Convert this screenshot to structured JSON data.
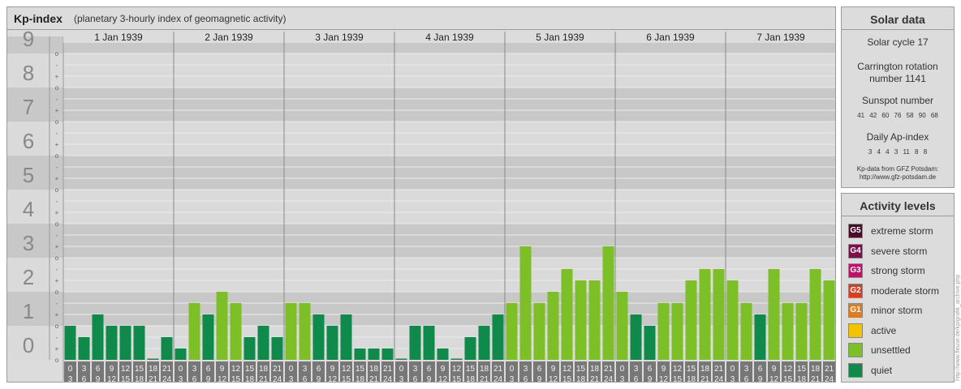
{
  "header": {
    "title": "Kp-index",
    "subtitle": "(planetary 3-hourly index of geomagnetic activity)"
  },
  "chart_data": {
    "type": "bar",
    "title": "Kp-index",
    "subtitle": "(planetary 3-hourly index of geomagnetic activity)",
    "days": [
      "1 Jan 1939",
      "2 Jan 1939",
      "3 Jan 1939",
      "4 Jan 1939",
      "5 Jan 1939",
      "6 Jan 1939",
      "7 Jan 1939"
    ],
    "interval_labels": [
      [
        "0",
        "3"
      ],
      [
        "3",
        "6"
      ],
      [
        "6",
        "9"
      ],
      [
        "9",
        "12"
      ],
      [
        "12",
        "15"
      ],
      [
        "15",
        "18"
      ],
      [
        "18",
        "21"
      ],
      [
        "21",
        "24"
      ]
    ],
    "y_major_labels": [
      "0",
      "1",
      "2",
      "3",
      "4",
      "5",
      "6",
      "7",
      "8",
      "9"
    ],
    "y_minor_labels": [
      "o",
      "+",
      "-",
      "o",
      "+",
      "-",
      "o",
      "+",
      "-",
      "o",
      "+",
      "-",
      "o",
      "+",
      "-",
      "o",
      "+",
      "-",
      "o",
      "+",
      "-",
      "o",
      "+",
      "-",
      "o",
      "+",
      "-",
      "o"
    ],
    "ylim": [
      0,
      9.333
    ],
    "values": [
      1.0,
      0.667,
      1.333,
      1.0,
      1.0,
      1.0,
      0.0,
      0.667,
      0.333,
      1.667,
      1.333,
      2.0,
      1.667,
      0.667,
      1.0,
      0.667,
      1.667,
      1.667,
      1.333,
      1.0,
      1.333,
      0.333,
      0.333,
      0.333,
      0.0,
      1.0,
      1.0,
      0.333,
      0.0,
      0.667,
      1.0,
      1.333,
      1.667,
      3.333,
      1.667,
      2.0,
      2.667,
      2.333,
      2.333,
      3.333,
      2.0,
      1.333,
      1.0,
      1.667,
      1.667,
      2.333,
      2.667,
      2.667,
      2.333,
      1.667,
      1.333,
      2.667,
      1.667,
      1.667,
      2.667,
      2.333
    ],
    "colors": {
      "quiet": "#0f8a4a",
      "unsettled": "#7dbf26",
      "active": "#f2c400",
      "minor": "#e07d1a",
      "moderate": "#d64020",
      "strong": "#c0106a",
      "severe": "#7a0f4a",
      "extreme": "#4a0a28"
    },
    "grid": true
  },
  "solar": {
    "title": "Solar data",
    "solar_cycle": "Solar cycle 17",
    "carrington_line1": "Carrington rotation",
    "carrington_line2": "number 1141",
    "sunspot_title": "Sunspot number",
    "sunspot_values": "41 42 60 76 58 90 68",
    "ap_title": "Daily Ap-index",
    "ap_values": "3 4 4 3 11 8 8",
    "source_line1": "Kp-data from GFZ Potsdam:",
    "source_line2": "http://www.gfz-potsdam.de"
  },
  "activity": {
    "title": "Activity levels",
    "items": [
      {
        "code": "G5",
        "label": "extreme storm",
        "color": "#4a0a28"
      },
      {
        "code": "G4",
        "label": "severe storm",
        "color": "#7a0f4a"
      },
      {
        "code": "G3",
        "label": "strong storm",
        "color": "#c0106a"
      },
      {
        "code": "G2",
        "label": "moderate storm",
        "color": "#d64020"
      },
      {
        "code": "G1",
        "label": "minor storm",
        "color": "#e07d1a"
      },
      {
        "code": "",
        "label": "active",
        "color": "#f2c400"
      },
      {
        "code": "",
        "label": "unsettled",
        "color": "#7dbf26"
      },
      {
        "code": "",
        "label": "quiet",
        "color": "#0f8a4a"
      }
    ]
  },
  "watermark": "http://www.fleuse.de/kp/grafik_archive.php"
}
